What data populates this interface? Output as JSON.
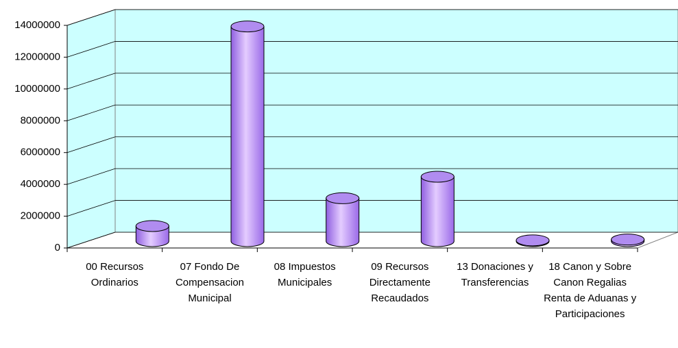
{
  "chart_data": {
    "type": "bar",
    "categories": [
      "00 Recursos Ordinarios",
      "07 Fondo De Compensacion Municipal",
      "08 Impuestos Municipales",
      "09 Recursos Directamente Recaudados",
      "13 Donaciones y Transferencias",
      "18 Canon y Sobre Canon Regalias Renta de Aduanas y Participaciones"
    ],
    "values": [
      950000,
      13500000,
      2700000,
      4050000,
      50000,
      100000
    ],
    "color": "#b08cf0",
    "ylim": [
      0,
      14000000
    ],
    "yticks": [
      0,
      2000000,
      4000000,
      6000000,
      8000000,
      10000000,
      12000000,
      14000000
    ],
    "grid": true
  }
}
